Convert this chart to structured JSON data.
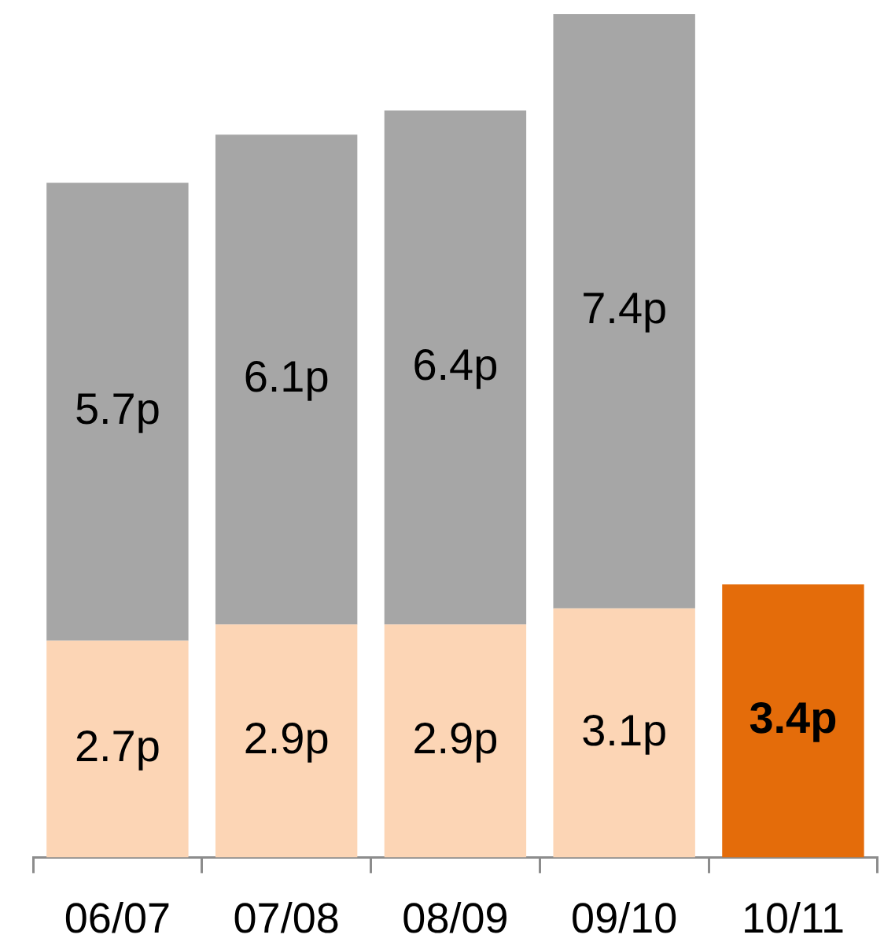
{
  "chart_data": {
    "type": "bar",
    "stacked": true,
    "categories": [
      "06/07",
      "07/08",
      "08/09",
      "09/10",
      "10/11"
    ],
    "series": [
      {
        "color": "#fcd5b5",
        "colors": [
          "#fcd5b5",
          "#fcd5b5",
          "#fcd5b5",
          "#fcd5b5",
          "#e46c0a"
        ],
        "values": [
          2.7,
          2.9,
          2.9,
          3.1,
          3.4
        ],
        "value_labels": [
          "2.7p",
          "2.9p",
          "2.9p",
          "3.1p",
          "3.4p"
        ]
      },
      {
        "color": "#a6a6a6",
        "values": [
          5.7,
          6.1,
          6.4,
          7.4,
          null
        ],
        "value_labels": [
          "5.7p",
          "6.1p",
          "6.4p",
          "7.4p",
          null
        ]
      }
    ]
  }
}
